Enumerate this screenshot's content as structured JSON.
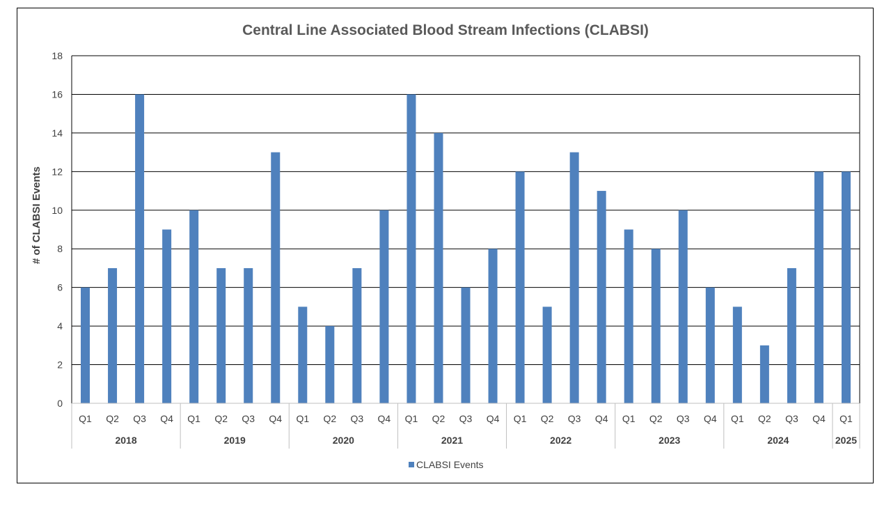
{
  "chart_data": {
    "type": "bar",
    "title": "Central Line Associated Blood Stream Infections (CLABSI)",
    "xlabel": "",
    "ylabel": "# of CLABSI Events",
    "ylim": [
      0,
      18
    ],
    "yticks": [
      0,
      2,
      4,
      6,
      8,
      10,
      12,
      14,
      16,
      18
    ],
    "grid": true,
    "legend_position": "bottom",
    "categories": [
      {
        "quarter": "Q1",
        "year": "2018"
      },
      {
        "quarter": "Q2",
        "year": "2018"
      },
      {
        "quarter": "Q3",
        "year": "2018"
      },
      {
        "quarter": "Q4",
        "year": "2018"
      },
      {
        "quarter": "Q1",
        "year": "2019"
      },
      {
        "quarter": "Q2",
        "year": "2019"
      },
      {
        "quarter": "Q3",
        "year": "2019"
      },
      {
        "quarter": "Q4",
        "year": "2019"
      },
      {
        "quarter": "Q1",
        "year": "2020"
      },
      {
        "quarter": "Q2",
        "year": "2020"
      },
      {
        "quarter": "Q3",
        "year": "2020"
      },
      {
        "quarter": "Q4",
        "year": "2020"
      },
      {
        "quarter": "Q1",
        "year": "2021"
      },
      {
        "quarter": "Q2",
        "year": "2021"
      },
      {
        "quarter": "Q3",
        "year": "2021"
      },
      {
        "quarter": "Q4",
        "year": "2021"
      },
      {
        "quarter": "Q1",
        "year": "2022"
      },
      {
        "quarter": "Q2",
        "year": "2022"
      },
      {
        "quarter": "Q3",
        "year": "2022"
      },
      {
        "quarter": "Q4",
        "year": "2022"
      },
      {
        "quarter": "Q1",
        "year": "2023"
      },
      {
        "quarter": "Q2",
        "year": "2023"
      },
      {
        "quarter": "Q3",
        "year": "2023"
      },
      {
        "quarter": "Q4",
        "year": "2023"
      },
      {
        "quarter": "Q1",
        "year": "2024"
      },
      {
        "quarter": "Q2",
        "year": "2024"
      },
      {
        "quarter": "Q3",
        "year": "2024"
      },
      {
        "quarter": "Q4",
        "year": "2024"
      },
      {
        "quarter": "Q1",
        "year": "2025"
      }
    ],
    "years": [
      "2018",
      "2019",
      "2020",
      "2021",
      "2022",
      "2023",
      "2024",
      "2025"
    ],
    "series": [
      {
        "name": "CLABSI Events",
        "color": "#4f81bd",
        "values": [
          6,
          7,
          16,
          9,
          10,
          7,
          7,
          13,
          5,
          4,
          7,
          10,
          16,
          14,
          6,
          8,
          12,
          5,
          13,
          11,
          9,
          8,
          10,
          6,
          5,
          3,
          7,
          12,
          12
        ]
      }
    ]
  }
}
